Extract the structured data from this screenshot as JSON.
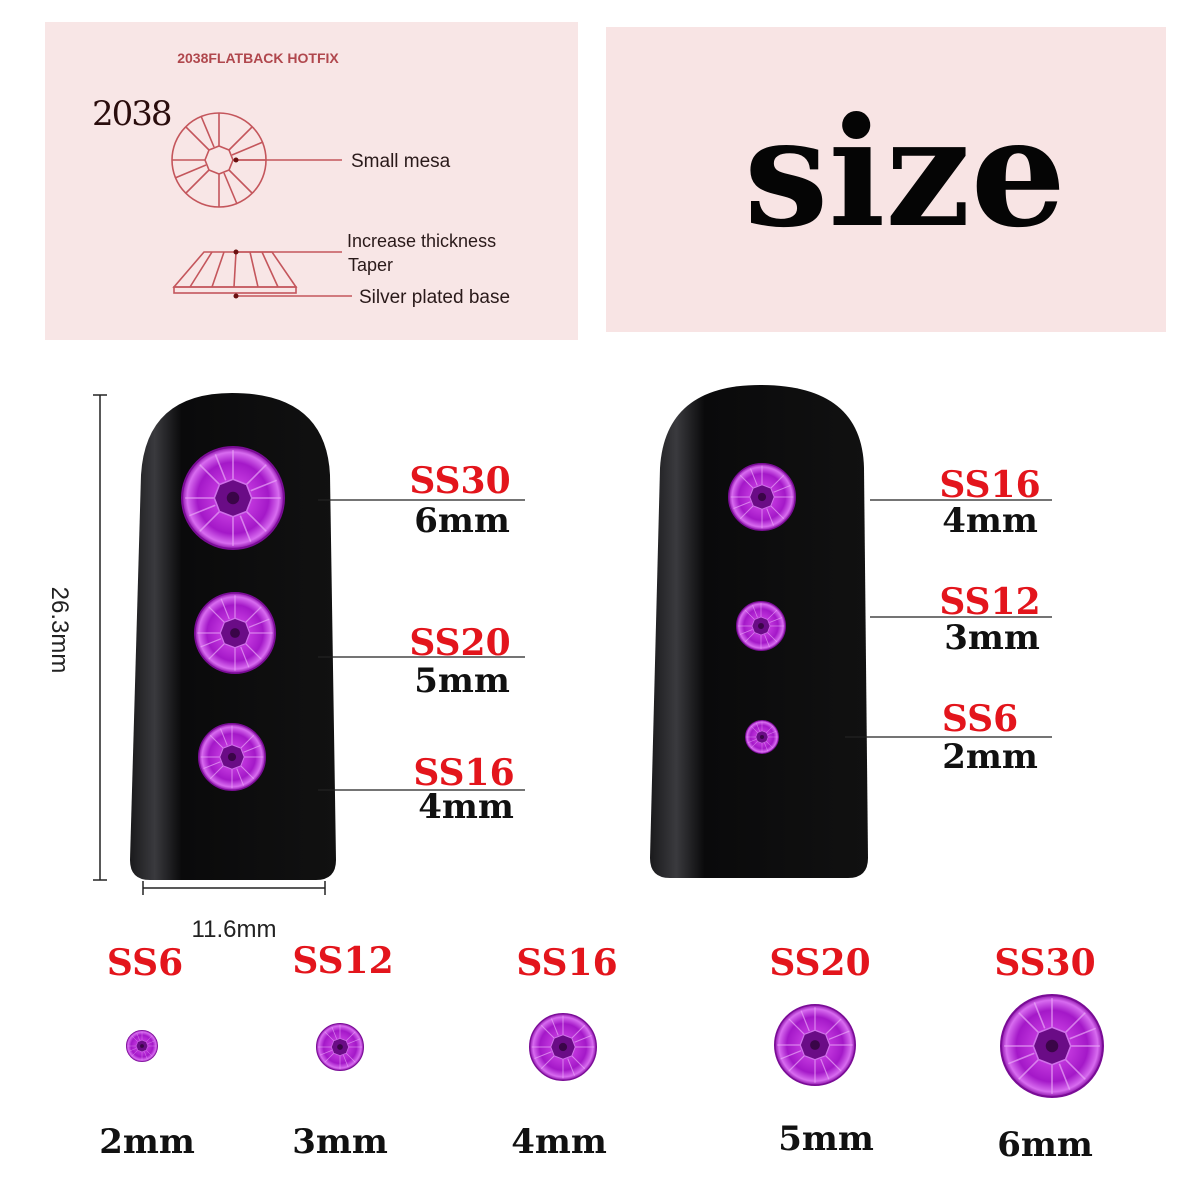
{
  "diagram": {
    "header": "2038FLATBACK HOTFIX",
    "model": "2038",
    "labels": [
      "Small mesa",
      "Increase thickness",
      "Taper",
      "Silver plated base"
    ]
  },
  "title": "size",
  "dimensions": {
    "height": "26.3mm",
    "width": "11.6mm"
  },
  "left_nail": [
    {
      "code": "SS30",
      "size": "6mm"
    },
    {
      "code": "SS20",
      "size": "5mm"
    },
    {
      "code": "SS16",
      "size": "4mm"
    }
  ],
  "right_nail": [
    {
      "code": "SS16",
      "size": "4mm"
    },
    {
      "code": "SS12",
      "size": "3mm"
    },
    {
      "code": "SS6",
      "size": "2mm"
    }
  ],
  "bottom_row": [
    {
      "code": "SS6",
      "size": "2mm"
    },
    {
      "code": "SS12",
      "size": "3mm"
    },
    {
      "code": "SS16",
      "size": "4mm"
    },
    {
      "code": "SS20",
      "size": "5mm"
    },
    {
      "code": "SS30",
      "size": "6mm"
    }
  ],
  "colors": {
    "panel": "#f8e6e6",
    "code_red": "#e3151c",
    "gem": "#b51fd6",
    "nail": "#0c0c0e"
  }
}
